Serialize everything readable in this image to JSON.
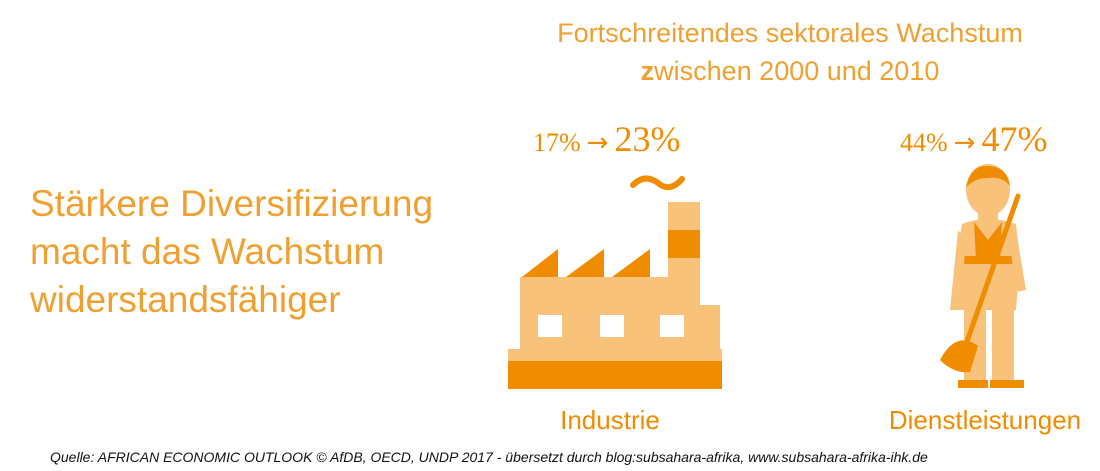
{
  "heading": {
    "line1": "Fortschreitendes sektorales Wachstum",
    "line2_prefix": "z",
    "line2_rest": "wischen 2000 und 2010"
  },
  "main_text": {
    "line1": "Stärkere Diversifizierung",
    "line2": "macht das Wachstum",
    "line3": "widerstandsfähiger"
  },
  "industry": {
    "from": "17%",
    "arrow": "→",
    "to": "23%",
    "label": "Industrie",
    "icon": "factory-icon"
  },
  "services": {
    "from": "44%",
    "arrow": "→",
    "to": "47%",
    "label": "Dienstleistungen",
    "icon": "worker-icon"
  },
  "source": "Quelle: AFRICAN ECONOMIC OUTLOOK © AfDB, OECD, UNDP 2017 - übersetzt durch blog:subsahara-afrika, www.subsahara-afrika-ihk.de",
  "colors": {
    "orange": "#f08c00",
    "light_orange": "#f8c27a",
    "text_orange": "#f0a030"
  }
}
